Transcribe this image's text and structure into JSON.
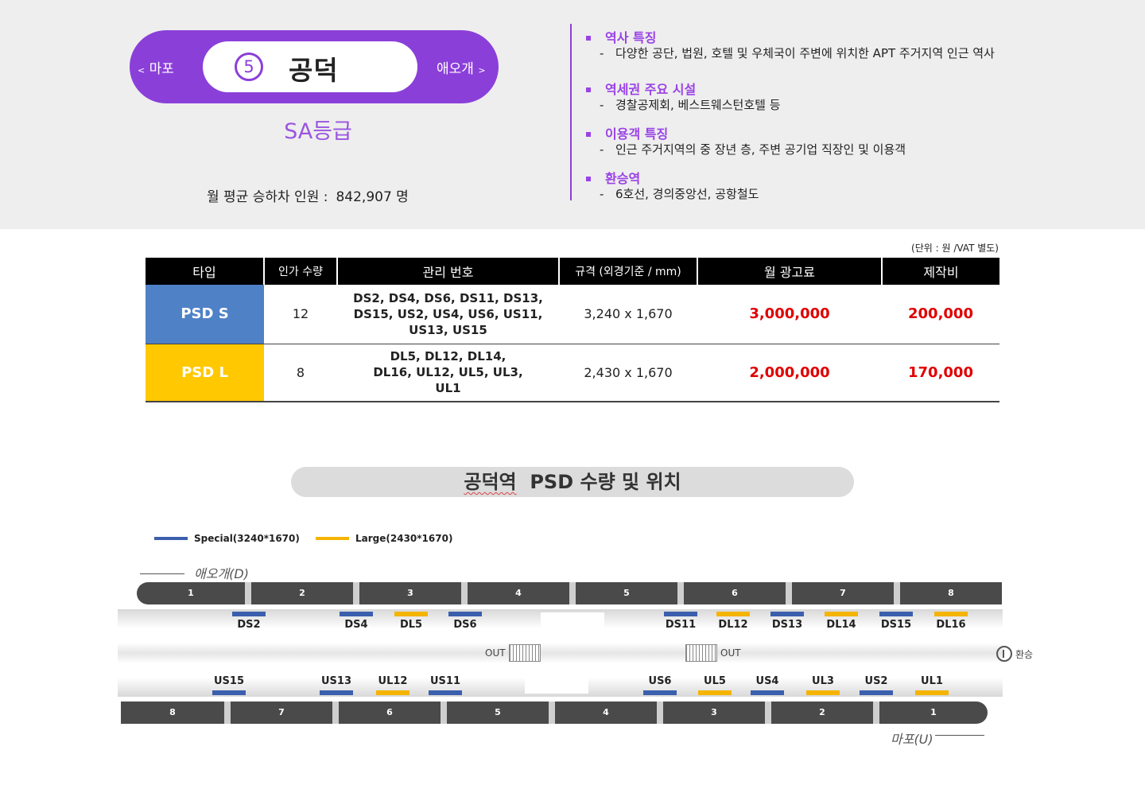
{
  "station": {
    "prev": "마포",
    "prev_arrow": "<",
    "next": "애오개",
    "next_arrow": ">",
    "number": "5",
    "name": "공덕",
    "grade": "SA등급",
    "ridership_label": "월 평균 승하차 인원 :",
    "ridership_value": "842,907 명",
    "line_color": "#8b3fd9"
  },
  "info": [
    {
      "head": "역사 특징",
      "text": "다양한 공단, 법원, 호텔 및 우체국이 주변에 위치한 APT 주거지역 인근 역사"
    },
    {
      "head": "역세권 주요 시설",
      "text": "경찰공제회, 베스트웨스턴호텔  등"
    },
    {
      "head": "이용객 특징",
      "text": "인근 주거지역의 중 장년 층, 주변 공기업 직장인 및 이용객"
    },
    {
      "head": "환승역",
      "text": "6호선, 경의중앙선, 공항철도"
    }
  ],
  "table": {
    "unit_note": "(단위 : 원 /VAT 별도)",
    "headers": [
      "타입",
      "인가 수량",
      "관리 번호",
      "규격 (외경기준 / mm)",
      "월 광고료",
      "제작비"
    ],
    "rows": [
      {
        "type": "PSD S",
        "qty": "12",
        "codes": "DS2, DS4, DS6, DS11, DS13, DS15, US2, US4, US6, US11, US13, US15",
        "size": "3,240 x 1,670",
        "monthly_fee": "3,000,000",
        "production": "200,000"
      },
      {
        "type": "PSD L",
        "qty": "8",
        "codes": "DL5, DL12, DL14, DL16, UL12, UL5, UL3, UL1",
        "size": "2,430 x 1,670",
        "monthly_fee": "2,000,000",
        "production": "170,000"
      }
    ],
    "colors": {
      "psd_s": "#4f81c6",
      "psd_l": "#ffc800",
      "price": "#e00000"
    }
  },
  "map": {
    "title_station": "공덕역",
    "title_rest": "PSD 수량 및 위치",
    "legend": [
      {
        "label": "Special(3240*1670)",
        "color": "#3b5fad"
      },
      {
        "label": "Large(2430*1670)",
        "color": "#f5b400"
      }
    ],
    "dir_down": "애오개(D)",
    "dir_up": "마포(U)",
    "top_cars": [
      "1",
      "2",
      "3",
      "4",
      "5",
      "6",
      "7",
      "8"
    ],
    "bottom_cars": [
      "8",
      "7",
      "6",
      "5",
      "4",
      "3",
      "2",
      "1"
    ],
    "exit_label": "OUT",
    "transfer_label": "환승",
    "top_psd": [
      {
        "code": "DS2",
        "kind": "special"
      },
      {
        "code": "DS4",
        "kind": "special"
      },
      {
        "code": "DL5",
        "kind": "large"
      },
      {
        "code": "DS6",
        "kind": "special"
      },
      {
        "code": "DS11",
        "kind": "special"
      },
      {
        "code": "DL12",
        "kind": "large"
      },
      {
        "code": "DS13",
        "kind": "special"
      },
      {
        "code": "DL14",
        "kind": "large"
      },
      {
        "code": "DS15",
        "kind": "special"
      },
      {
        "code": "DL16",
        "kind": "large"
      }
    ],
    "bottom_psd": [
      {
        "code": "US15",
        "kind": "special"
      },
      {
        "code": "US13",
        "kind": "special"
      },
      {
        "code": "UL12",
        "kind": "large"
      },
      {
        "code": "US11",
        "kind": "special"
      },
      {
        "code": "US6",
        "kind": "special"
      },
      {
        "code": "UL5",
        "kind": "large"
      },
      {
        "code": "US4",
        "kind": "special"
      },
      {
        "code": "UL3",
        "kind": "large"
      },
      {
        "code": "US2",
        "kind": "special"
      },
      {
        "code": "UL1",
        "kind": "large"
      }
    ]
  }
}
